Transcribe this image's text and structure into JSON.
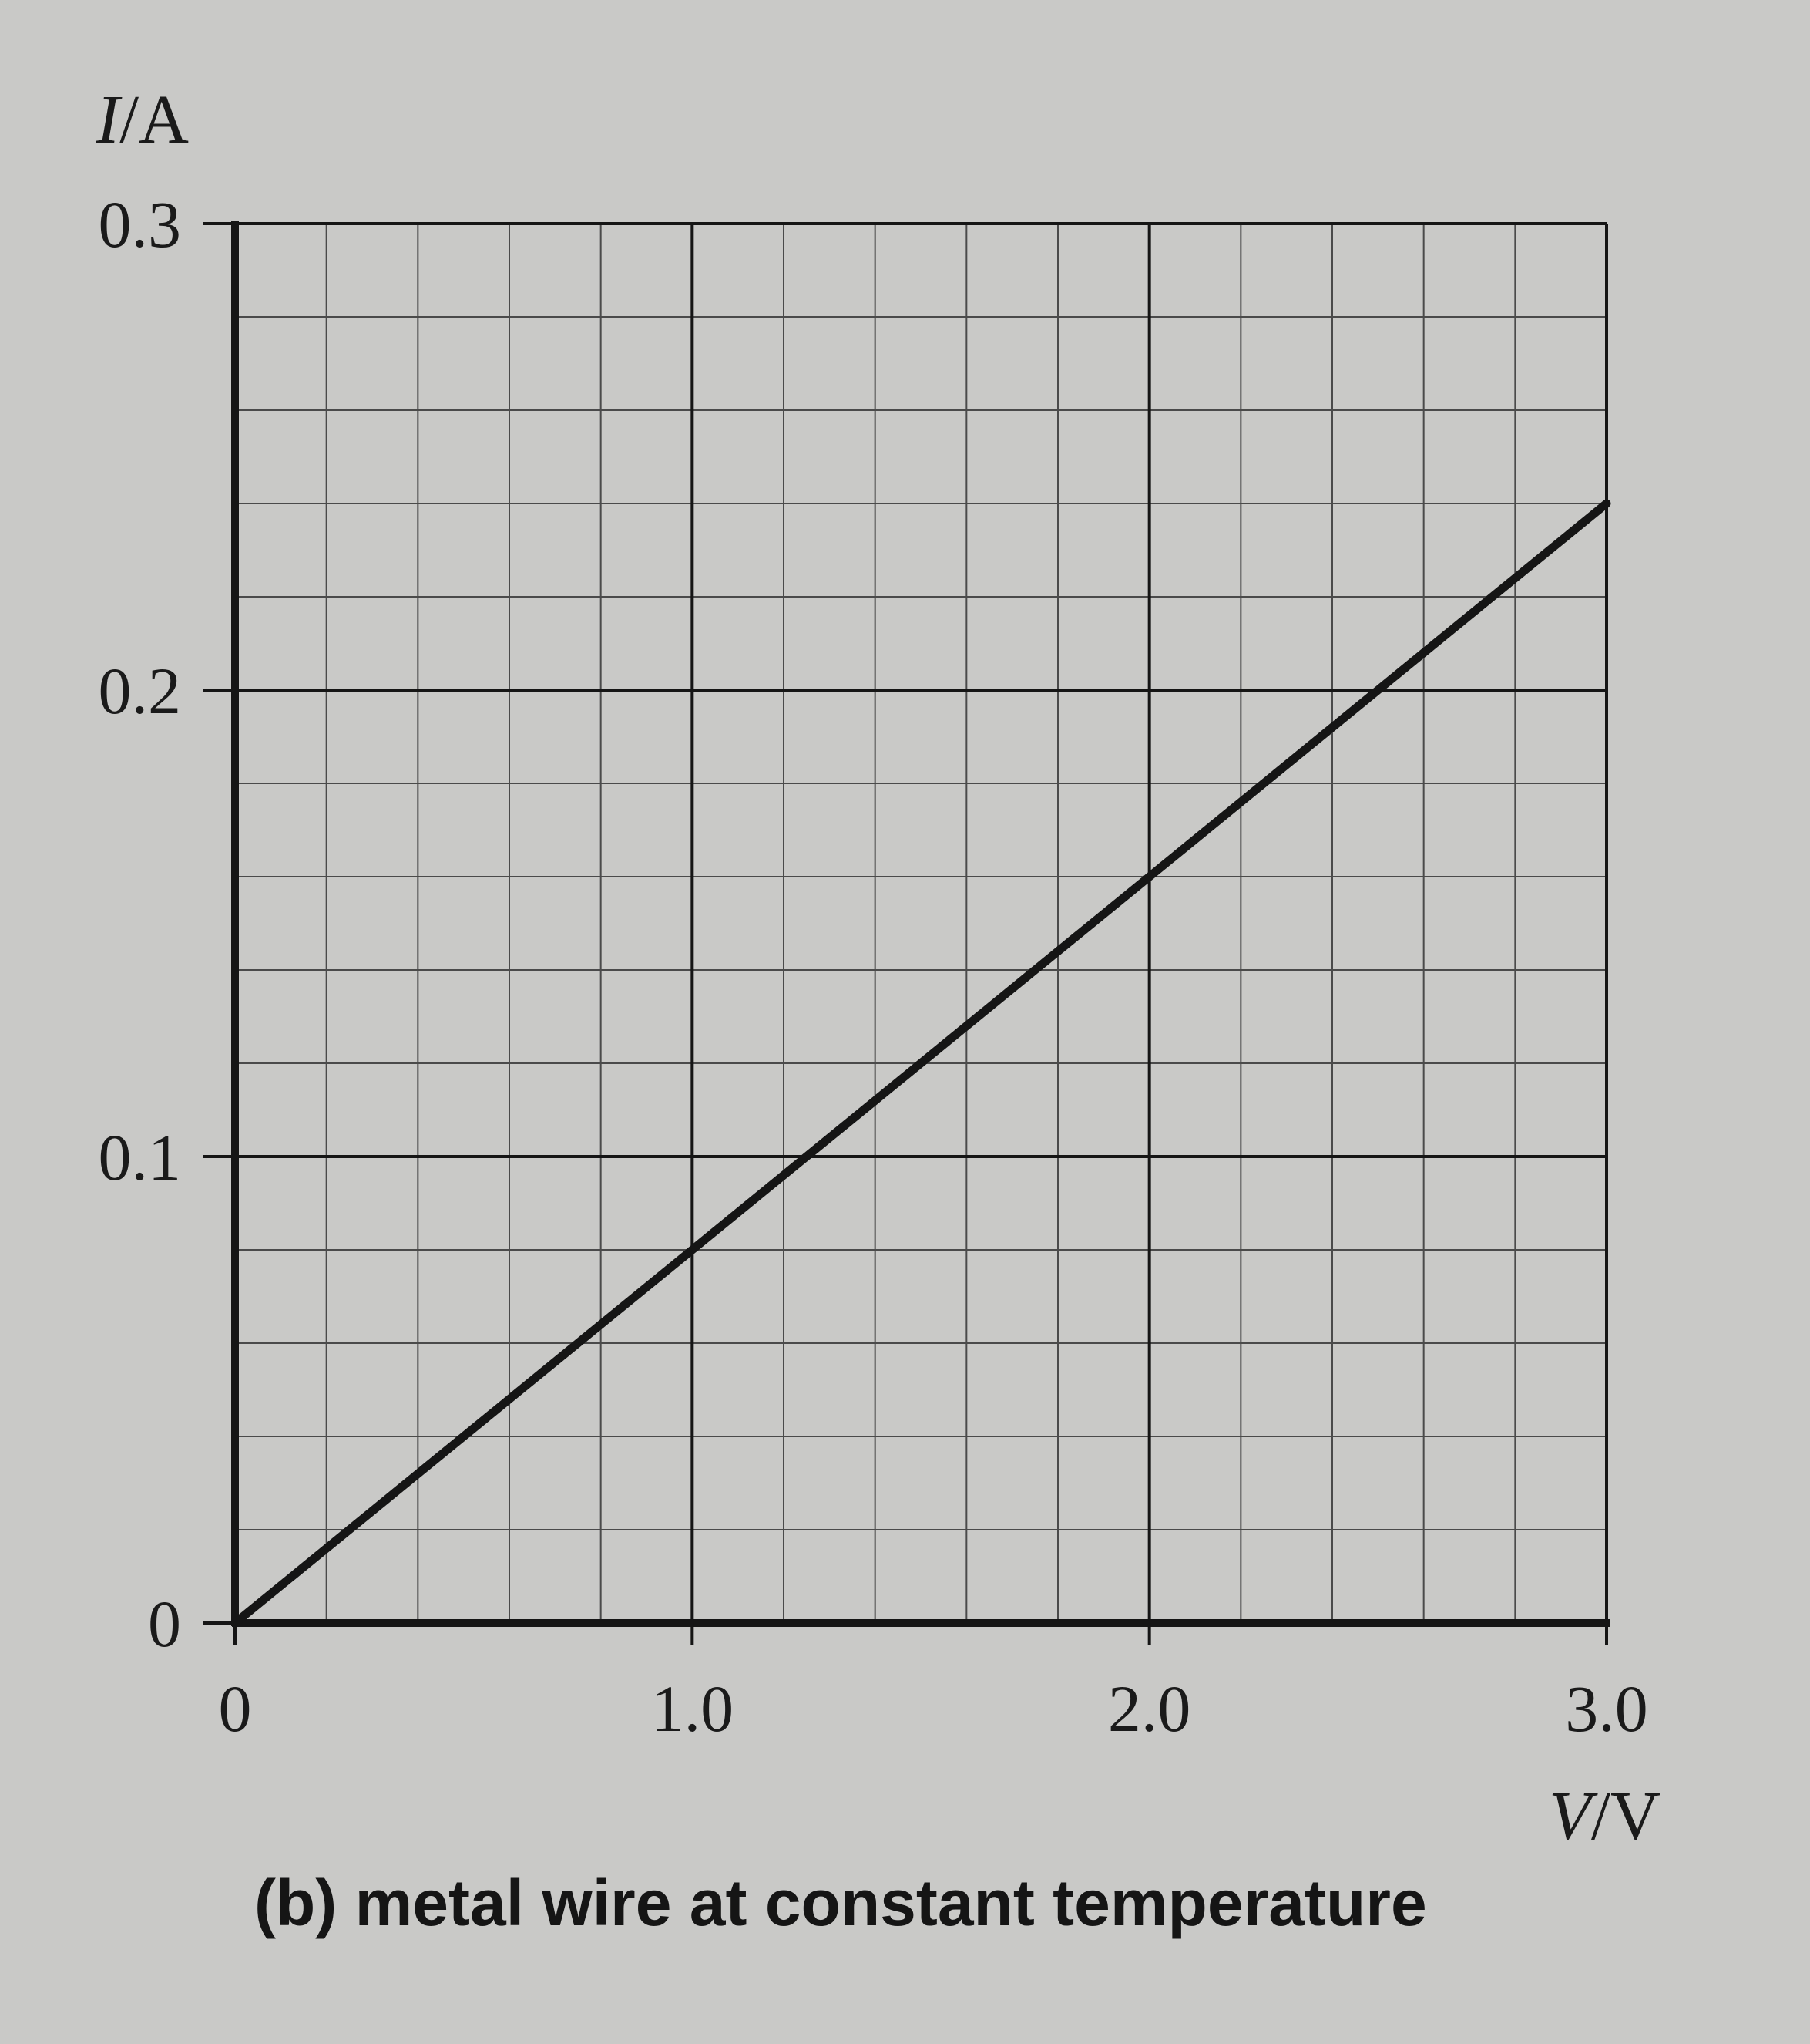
{
  "chart_data": {
    "type": "line",
    "title": "",
    "xlabel": {
      "symbol": "V",
      "unit": "V"
    },
    "ylabel": {
      "symbol": "I",
      "unit": "A"
    },
    "xlim": [
      0,
      3.0
    ],
    "ylim": [
      0,
      0.3
    ],
    "xticks": [
      "0",
      "1.0",
      "2.0",
      "3.0"
    ],
    "yticks": [
      "0",
      "0.1",
      "0.2",
      "0.3"
    ],
    "grid": true,
    "series": [
      {
        "x": [
          0,
          1.0,
          2.0,
          3.0
        ],
        "y": [
          0,
          0.08,
          0.16,
          0.24
        ]
      }
    ]
  },
  "caption": "(b) metal wire at constant temperature",
  "colors": {
    "background": "#c9c9c7",
    "ink": "#151515"
  }
}
